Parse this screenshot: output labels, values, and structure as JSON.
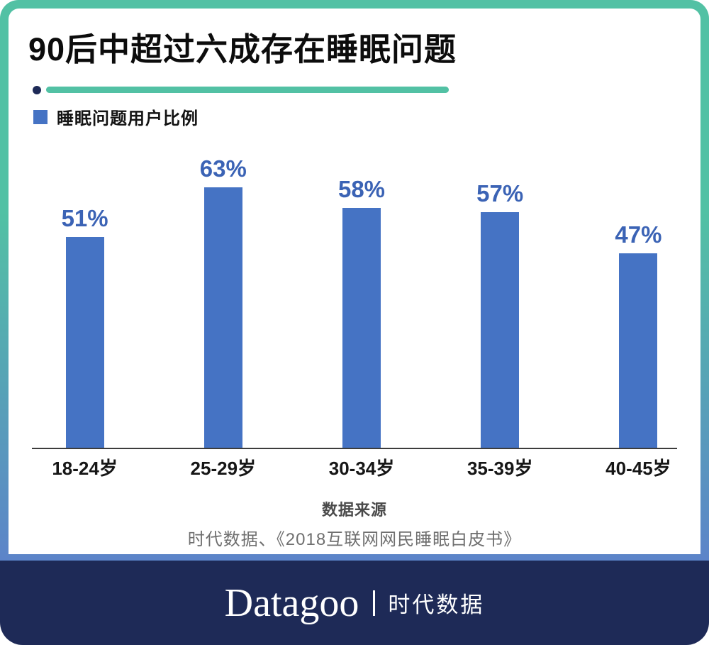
{
  "poster": {
    "title": "90后中超过六成存在睡眠问题",
    "legend": {
      "label": "睡眠问题用户比例"
    },
    "source": {
      "heading": "数据来源",
      "text": "时代数据、《2018互联网网民睡眠白皮书》"
    },
    "footer": {
      "brand": "Datagoo",
      "brand_cn": "时代数据"
    },
    "colors": {
      "teal": "#52C1A4",
      "frame_gradient_end": "#5C84C9",
      "bar_blue": "#4573C4",
      "label_blue": "#3B63B5",
      "navy": "#1E2A57"
    }
  },
  "chart_data": {
    "type": "bar",
    "title": "90后中超过六成存在睡眠问题",
    "series_name": "睡眠问题用户比例",
    "categories": [
      "18-24岁",
      "25-29岁",
      "30-34岁",
      "35-39岁",
      "40-45岁"
    ],
    "values": [
      51,
      63,
      58,
      57,
      47
    ],
    "labels": [
      "51%",
      "63%",
      "58%",
      "57%",
      "47%"
    ],
    "unit": "%",
    "xlabel": "",
    "ylabel": "",
    "ylim": [
      0,
      70
    ],
    "grid": false,
    "legend_position": "top-left"
  }
}
